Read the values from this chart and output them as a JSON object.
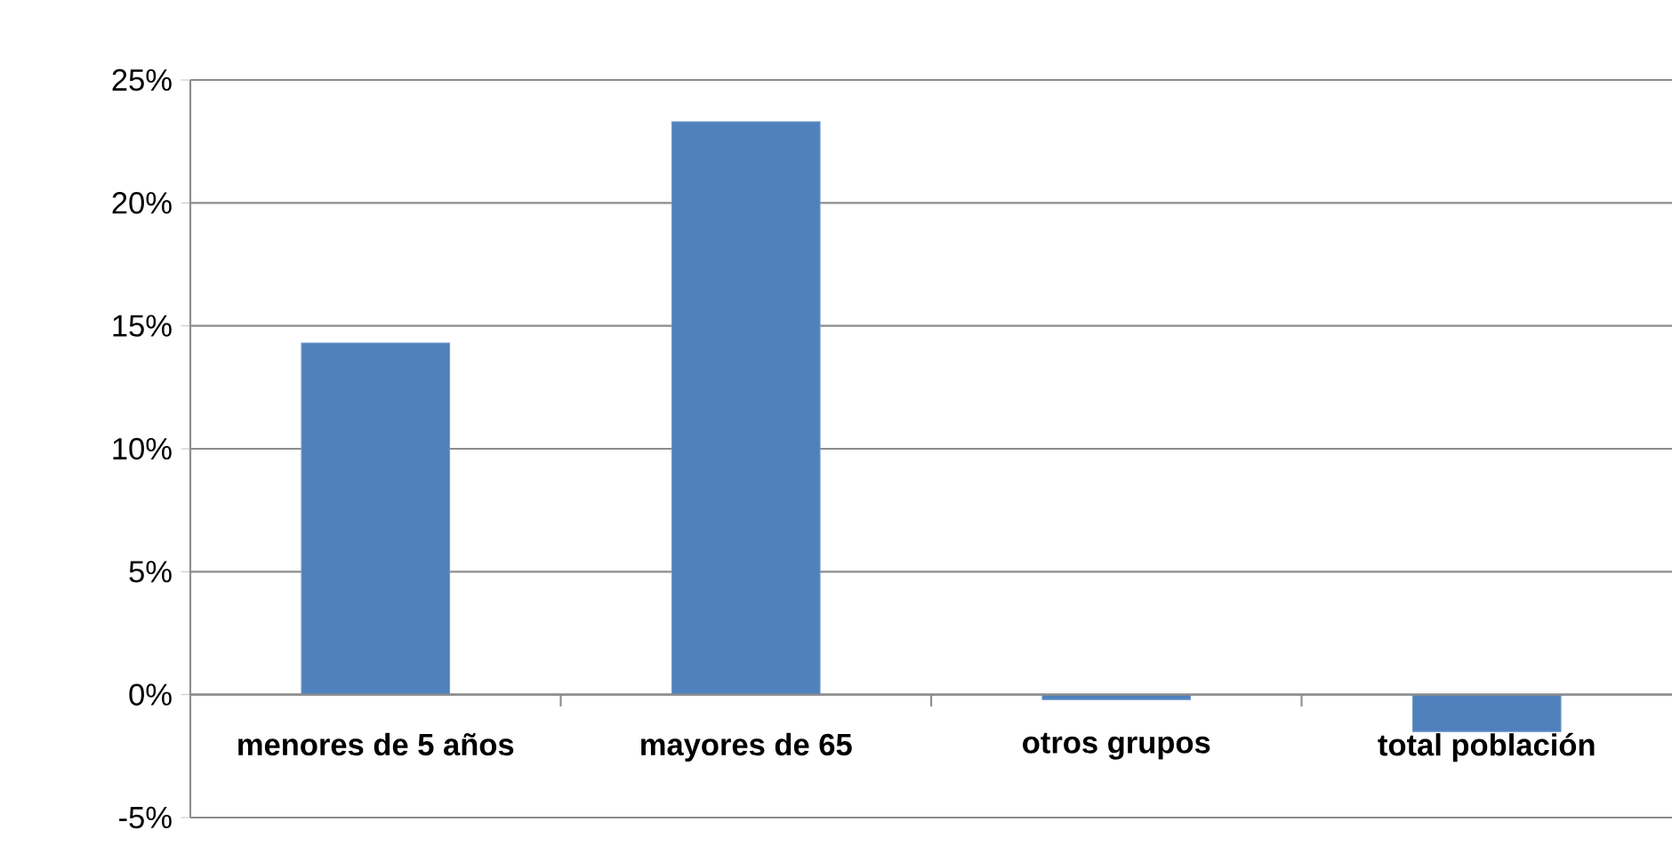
{
  "chart_data": {
    "type": "bar",
    "categories": [
      "menores de 5 años",
      "mayores de 65",
      "otros grupos",
      "total población"
    ],
    "values": [
      14.3,
      23.3,
      -0.2,
      -1.5
    ],
    "color": "#4f81bd",
    "ylim": [
      -5,
      25
    ],
    "yticks": [
      {
        "value": -5,
        "label": "-5%"
      },
      {
        "value": 0,
        "label": "0%"
      },
      {
        "value": 5,
        "label": "5%"
      },
      {
        "value": 10,
        "label": "10%"
      },
      {
        "value": 15,
        "label": "15%"
      },
      {
        "value": 20,
        "label": "20%"
      },
      {
        "value": 25,
        "label": "25%"
      }
    ],
    "grid": "y"
  }
}
